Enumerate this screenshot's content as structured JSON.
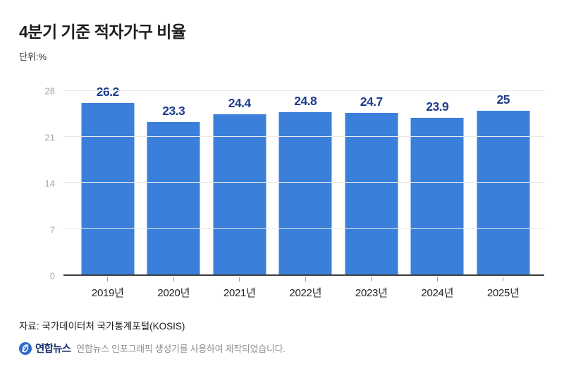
{
  "header": {
    "title": "4분기 기준 적자가구 비율",
    "unit": "단위:%"
  },
  "chart_data": {
    "type": "bar",
    "title": "4분기 기준 적자가구 비율",
    "categories": [
      "2019년",
      "2020년",
      "2021년",
      "2022년",
      "2023년",
      "2024년",
      "2025년"
    ],
    "values": [
      26.2,
      23.3,
      24.4,
      24.8,
      24.7,
      23.9,
      25
    ],
    "value_labels": [
      "26.2",
      "23.3",
      "24.4",
      "24.8",
      "24.7",
      "23.9",
      "25"
    ],
    "xlabel": "",
    "ylabel": "%",
    "ylim": [
      0,
      28
    ],
    "yticks": [
      0,
      7,
      14,
      21,
      28
    ],
    "grid": true,
    "legend": "none",
    "bar_color": "#3a80db",
    "value_label_color": "#1e3c8e"
  },
  "footer": {
    "source": "자료: 국가데이터처 국가통계포털(KOSIS)",
    "logo": "연합뉴스",
    "credit": "연합뉴스 인포그래픽 생성기를 사용하여 제작되었습니다."
  },
  "colors": {
    "background": "#ffffff",
    "bar": "#3a80db",
    "value_label": "#1e3c8e",
    "y_axis_label": "#a6a6a6",
    "x_axis_label": "#222222",
    "gridline": "#e9e9e9",
    "axis_line": "#3f3f3f",
    "title": "#1d1d1f",
    "credit_text": "#8f8f8f",
    "logo_navy": "#16306f",
    "logo_blue": "#2e6bc6"
  }
}
